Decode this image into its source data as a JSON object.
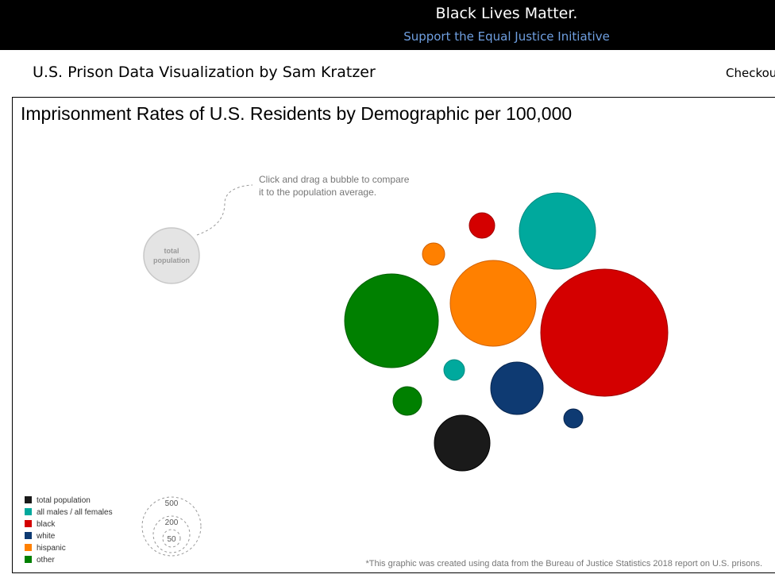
{
  "banner": {
    "title": "Black Lives Matter.",
    "link": "Support the Equal Justice Initiative"
  },
  "header": {
    "title": "U.S. Prison Data Visualization by Sam Kratzer",
    "checkout": "Checkou"
  },
  "chart_data": {
    "type": "bubble",
    "title": "Imprisonment Rates of U.S. Residents by Demographic per 100,000",
    "instruction": {
      "line1": "Click and drag a bubble to compare",
      "line2": "it to the population average."
    },
    "reference_bubble": {
      "line1": "total",
      "line2": "population"
    },
    "legend": [
      {
        "label": "total population",
        "color": "#1a1a1a"
      },
      {
        "label": "all males / all females",
        "color": "#00a99d"
      },
      {
        "label": "black",
        "color": "#d40000"
      },
      {
        "label": "white",
        "color": "#0e3a72"
      },
      {
        "label": "hispanic",
        "color": "#ff8000"
      },
      {
        "label": "other",
        "color": "#008000"
      }
    ],
    "size_legend": [
      500,
      200,
      50
    ],
    "footnote": "*This graphic was created using data from the Bureau of Justice Statistics 2018 report on U.S. prisons."
  }
}
